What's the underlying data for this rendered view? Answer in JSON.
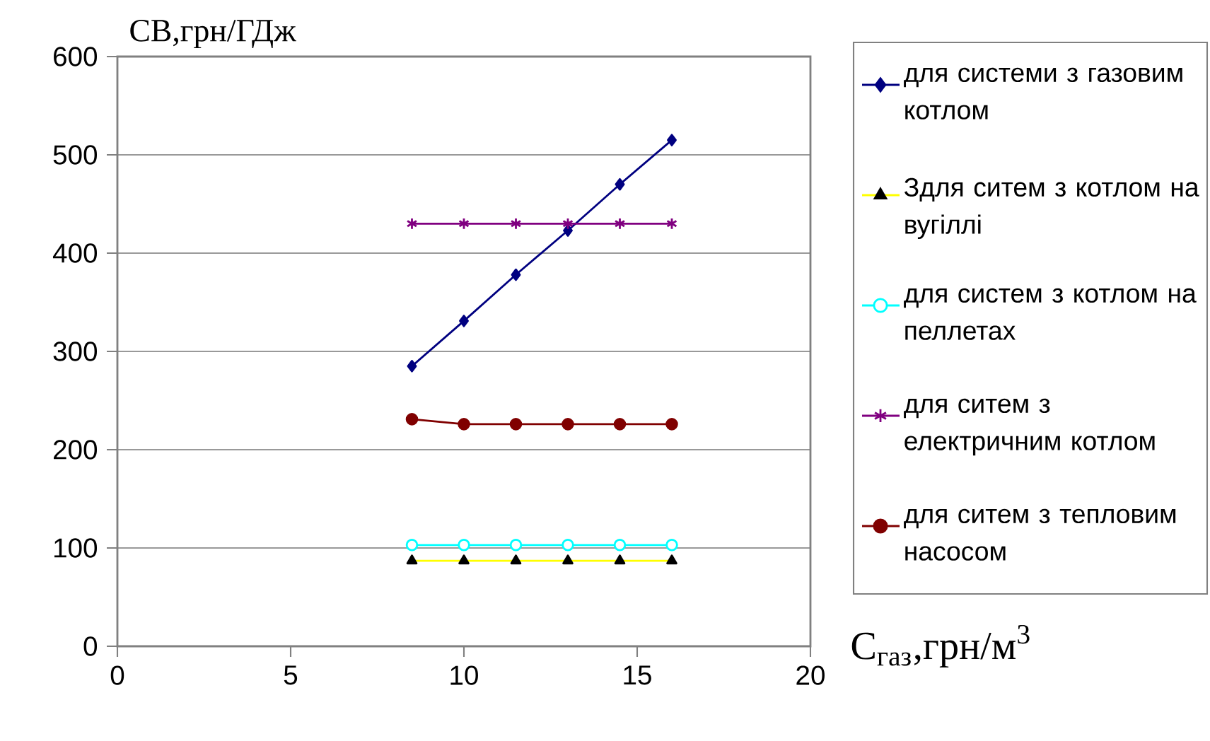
{
  "chart_data": {
    "type": "line",
    "ylabel": "СВ,грн/ГДж",
    "xlabel": "C$_{газ}$,грн/м$^{3}$",
    "x": [
      8.5,
      10,
      11.5,
      13,
      14.5,
      16
    ],
    "series": [
      {
        "name": "для системи з газовим котлом",
        "color": "#000080",
        "marker": "diamond",
        "values": [
          285,
          331,
          378,
          423,
          470,
          515
        ]
      },
      {
        "name": "Здля ситем з котлом на вугіллі",
        "color": "#ffff00",
        "marker": "triangle",
        "values": [
          87,
          87,
          87,
          87,
          87,
          87
        ]
      },
      {
        "name": "для систем з котлом на пеллетах",
        "color": "#00ffff",
        "marker": "circle",
        "values": [
          103,
          103,
          103,
          103,
          103,
          103
        ]
      },
      {
        "name": "для ситем з електричним котлом",
        "color": "#800080",
        "marker": "cross",
        "values": [
          430,
          430,
          430,
          430,
          430,
          430
        ]
      },
      {
        "name": "для ситем з тепловим насосом",
        "color": "#800000",
        "marker": "circle",
        "values": [
          231,
          226,
          226,
          226,
          226,
          226
        ]
      }
    ],
    "xlim": [
      0,
      20
    ],
    "xticks": [
      0,
      5,
      10,
      15,
      20
    ],
    "ylim": [
      0,
      600
    ],
    "yticks": [
      0,
      100,
      200,
      300,
      400,
      500,
      600
    ],
    "grid": "y",
    "legend": "right",
    "line_style": "solid"
  }
}
